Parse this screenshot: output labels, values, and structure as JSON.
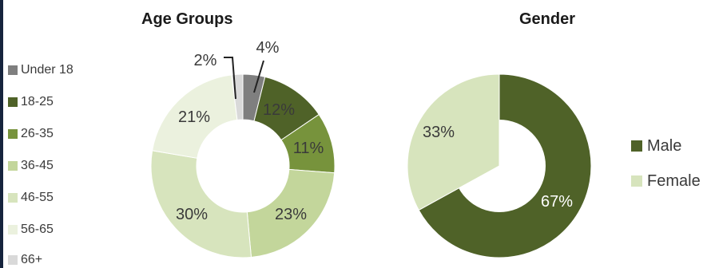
{
  "chart_data": [
    {
      "type": "pie",
      "title": "Age Groups",
      "categories": [
        "Under 18",
        "18-25",
        "26-35",
        "36-45",
        "46-55",
        "56-65",
        "66+"
      ],
      "values": [
        4,
        12,
        11,
        23,
        30,
        21,
        2
      ],
      "labels": [
        "4%",
        "12%",
        "11%",
        "23%",
        "30%",
        "21%",
        "2%"
      ],
      "colors": [
        "#7f7f7f",
        "#4f6228",
        "#77933c",
        "#c3d69b",
        "#d7e4bd",
        "#ebf1de",
        "#d9d9d9"
      ],
      "donut": true,
      "legend_position": "left"
    },
    {
      "type": "pie",
      "title": "Gender",
      "categories": [
        "Male",
        "Female"
      ],
      "values": [
        67,
        33
      ],
      "labels": [
        "67%",
        "33%"
      ],
      "colors": [
        "#4f6228",
        "#d7e4bd"
      ],
      "donut": true,
      "legend_position": "right"
    }
  ]
}
